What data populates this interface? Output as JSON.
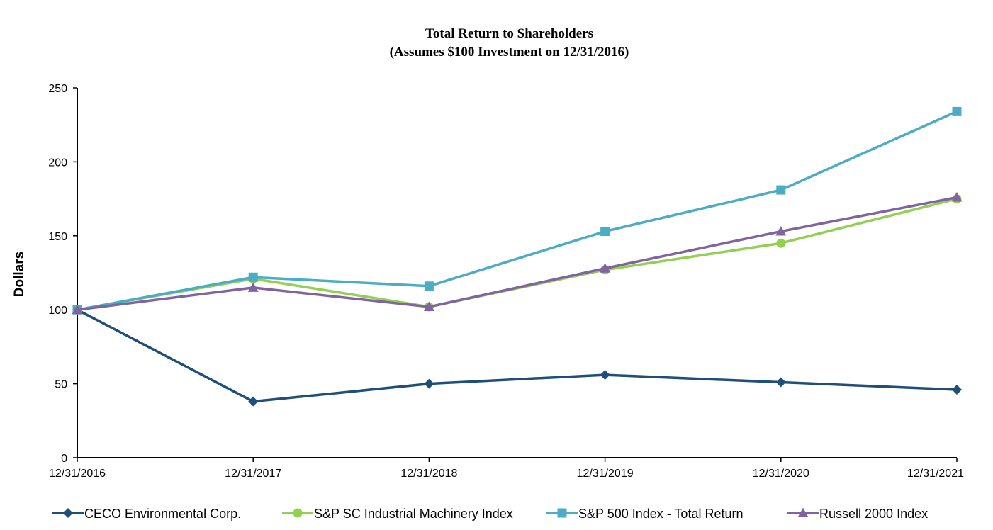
{
  "chart_data": {
    "type": "line",
    "title": "Total Return to Shareholders",
    "subtitle": "(Assumes $100 Investment on 12/31/2016)",
    "ylabel": "Dollars",
    "xlabel": "",
    "ylim": [
      0,
      250
    ],
    "yticks": [
      "0",
      "50",
      "100",
      "150",
      "200",
      "250"
    ],
    "categories": [
      "12/31/2016",
      "12/31/2017",
      "12/31/2018",
      "12/31/2019",
      "12/31/2020",
      "12/31/2021"
    ],
    "grid": false,
    "legend": "bottom",
    "series": [
      {
        "name": "CECO Environmental Corp.",
        "color": "#1f4e79",
        "marker": "diamond",
        "values": [
          100,
          38,
          50,
          56,
          51,
          46
        ]
      },
      {
        "name": "S&P SC Industrial Machinery Index",
        "color": "#92d050",
        "marker": "circle",
        "values": [
          100,
          121,
          102,
          127,
          145,
          175
        ]
      },
      {
        "name": "S&P 500 Index - Total Return",
        "color": "#4bacc6",
        "marker": "square",
        "values": [
          100,
          122,
          116,
          153,
          181,
          234
        ]
      },
      {
        "name": "Russell 2000 Index",
        "color": "#8064a2",
        "marker": "triangle",
        "values": [
          100,
          115,
          102,
          128,
          153,
          176
        ]
      }
    ]
  }
}
